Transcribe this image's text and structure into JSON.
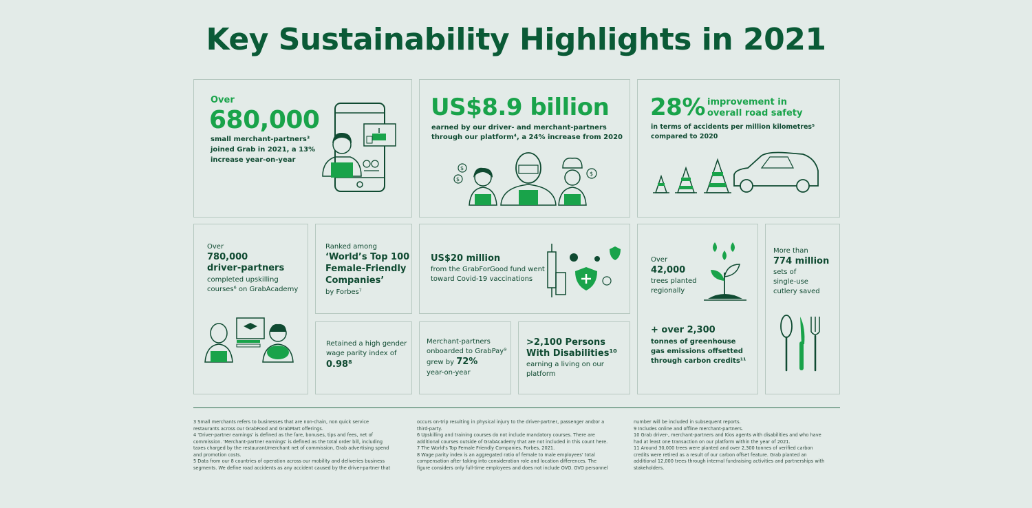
{
  "title": "Key Sustainability Highlights in 2021",
  "colors": {
    "brand_green": "#19a34a",
    "dark_green": "#0f4a31",
    "background": "#e3ebe8"
  },
  "cards": {
    "merchants": {
      "over": "Over",
      "number": "680,000",
      "l1": "small merchant-partners³",
      "l2": "joined Grab in 2021, a 13%",
      "l3": "increase year-on-year",
      "icon": "merchant-phone-illustration"
    },
    "earnings": {
      "headline": "US$8.9 billion",
      "l1": "earned by our driver- and merchant-partners",
      "l2": "through our platform⁴, a 24% increase from 2020",
      "icon": "partners-illustration"
    },
    "safety": {
      "pct": "28%",
      "t1": "improvement in",
      "t2": "overall road safety",
      "l1": "in terms of accidents per million kilometres⁵",
      "l2": "compared to 2020",
      "icon": "car-cones-illustration"
    },
    "upskill": {
      "over": "Over",
      "n1": "780,000",
      "n2": "driver-partners",
      "l1": "completed upskilling",
      "l2": "courses⁶ on GrabAcademy",
      "icon": "graduates-illustration"
    },
    "forbes": {
      "l1": "Ranked among",
      "h1": "‘World’s Top 100",
      "h2": "Female-Friendly",
      "h3": "Companies’",
      "l2": "by Forbes⁷"
    },
    "covid": {
      "headline": "US$20 million",
      "l1": "from the GrabForGood fund went",
      "l2": "toward Covid-19 vaccinations",
      "icon": "vaccine-illustration"
    },
    "trees": {
      "over": "Over",
      "number": "42,000",
      "l1": "trees planted",
      "l2": "regionally",
      "g1": "+ over 2,300",
      "g2": "tonnes of greenhouse",
      "g3": "gas emissions offsetted",
      "g4": "through carbon credits¹¹",
      "icon": "seedling-illustration"
    },
    "cutlery": {
      "l1": "More than",
      "number": "774 million",
      "l2": "sets of",
      "l3": "single-use",
      "l4": "cutlery saved",
      "icon": "cutlery-illustration"
    },
    "wage": {
      "l1": "Retained a high gender",
      "l2": "wage parity index of",
      "value": "0.98⁸"
    },
    "grabpay": {
      "l1": "Merchant-partners",
      "l2": "onboarded to GrabPay⁹",
      "l3a": "grew by ",
      "pct": "72%",
      "l4": "year-on-year"
    },
    "pwd": {
      "h1": ">2,100 Persons",
      "h2": "With Disabilities¹⁰",
      "l1": "earning a living on our",
      "l2": "platform"
    }
  },
  "footnotes": {
    "col1": [
      "3  Small merchants refers to businesses that are non-chain, non quick service",
      "restaurants across our GrabFood and GrabMart offerings.",
      "4  'Driver-partner earnings' is defined as the fare, bonuses, tips and fees, net of",
      "commission. 'Merchant-partner earnings' is defined as the total order bill, including",
      "taxes charged by the restaurant/merchant net of commission, Grab advertising spend",
      "and promotion costs.",
      "5  Data from our 8 countries of operation across our mobility and deliveries business",
      "segments. We define road accidents as any accident caused by the driver-partner that"
    ],
    "col2": [
      "occurs on-trip resulting in physical injury to the driver-partner, passenger and/or a",
      "third-party.",
      "6  Upskilling and training courses do not include mandatory courses. There are",
      "additional courses outside of GrabAcademy that are not included in this count here.",
      "7  The World's Top Female Friendly Companies, Forbes, 2021.",
      "8  Wage parity index is an aggregated ratio of female to male employees' total",
      "compensation after taking into consideration role and location differences. The",
      "figure considers only full-time employees and does not include OVO. OVO personnel"
    ],
    "col3": [
      "number will be included in subsequent reports.",
      "9  Includes online and offline merchant-partners.",
      "10  Grab driver-, merchant-partners and Kios agents with disabilities and who have",
      "had at least one transaction on our platform within the year of 2021.",
      "11  Around 30,000 trees were planted and over 2,300 tonnes of verified carbon",
      "credits were retired as a result of our carbon offset feature. Grab planted an",
      "additional 12,000 trees through internal fundraising activities and partnerships with",
      "stakeholders."
    ]
  }
}
